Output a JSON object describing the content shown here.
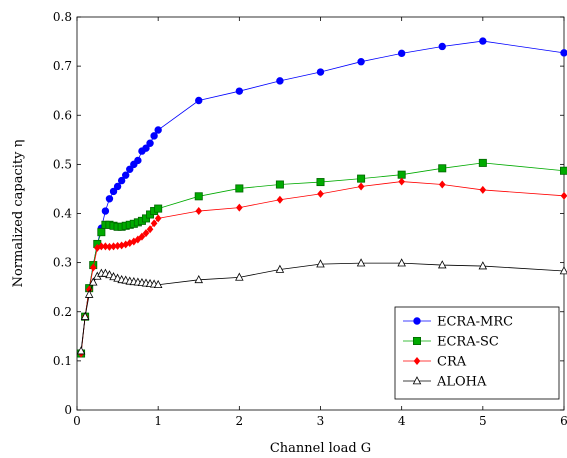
{
  "chart_data": {
    "type": "line",
    "xlabel": "Channel load G",
    "ylabel": "Normalized capacity η",
    "xlim": [
      0,
      6
    ],
    "ylim": [
      0,
      0.8
    ],
    "xticks": [
      "0",
      "1",
      "2",
      "3",
      "4",
      "5",
      "6"
    ],
    "yticks": [
      "0",
      "0.1",
      "0.2",
      "0.3",
      "0.4",
      "0.5",
      "0.6",
      "0.7",
      "0.8"
    ],
    "legend_position": "bottom-right",
    "grid": false,
    "series": [
      {
        "name": "ECRA-MRC",
        "color": "#0000ff",
        "marker": "circle",
        "x": [
          0.05,
          0.1,
          0.15,
          0.2,
          0.25,
          0.3,
          0.35,
          0.4,
          0.45,
          0.5,
          0.55,
          0.6,
          0.65,
          0.7,
          0.75,
          0.8,
          0.85,
          0.9,
          0.95,
          1,
          1.5,
          2,
          2.5,
          3,
          3.5,
          4,
          4.5,
          5,
          6
        ],
        "y": [
          0.115,
          0.19,
          0.248,
          0.295,
          0.338,
          0.37,
          0.405,
          0.43,
          0.445,
          0.455,
          0.467,
          0.478,
          0.49,
          0.5,
          0.508,
          0.527,
          0.533,
          0.543,
          0.558,
          0.57,
          0.63,
          0.649,
          0.67,
          0.688,
          0.709,
          0.726,
          0.74,
          0.751,
          0.727
        ]
      },
      {
        "name": "ECRA-SC",
        "color": "#00aa00",
        "marker": "square",
        "x": [
          0.05,
          0.1,
          0.15,
          0.2,
          0.25,
          0.3,
          0.35,
          0.4,
          0.45,
          0.5,
          0.55,
          0.6,
          0.65,
          0.7,
          0.75,
          0.8,
          0.85,
          0.9,
          0.95,
          1,
          1.5,
          2,
          2.5,
          3,
          3.5,
          4,
          4.5,
          5,
          6
        ],
        "y": [
          0.115,
          0.19,
          0.248,
          0.295,
          0.338,
          0.362,
          0.377,
          0.377,
          0.375,
          0.373,
          0.373,
          0.375,
          0.377,
          0.379,
          0.382,
          0.385,
          0.39,
          0.398,
          0.405,
          0.41,
          0.435,
          0.451,
          0.459,
          0.464,
          0.471,
          0.479,
          0.492,
          0.503,
          0.487
        ]
      },
      {
        "name": "CRA",
        "color": "#ff0000",
        "marker": "diamond",
        "x": [
          0.05,
          0.1,
          0.15,
          0.2,
          0.25,
          0.3,
          0.35,
          0.4,
          0.45,
          0.5,
          0.55,
          0.6,
          0.65,
          0.7,
          0.75,
          0.8,
          0.85,
          0.9,
          0.95,
          1,
          1.5,
          2,
          2.5,
          3,
          3.5,
          4,
          4.5,
          5,
          6
        ],
        "y": [
          0.115,
          0.19,
          0.245,
          0.29,
          0.33,
          0.333,
          0.333,
          0.332,
          0.333,
          0.334,
          0.335,
          0.337,
          0.34,
          0.343,
          0.347,
          0.353,
          0.36,
          0.368,
          0.38,
          0.39,
          0.405,
          0.412,
          0.428,
          0.44,
          0.455,
          0.465,
          0.459,
          0.448,
          0.436
        ]
      },
      {
        "name": "ALOHA",
        "color": "#000000",
        "marker": "triangle",
        "x": [
          0.05,
          0.1,
          0.15,
          0.2,
          0.25,
          0.3,
          0.35,
          0.4,
          0.45,
          0.5,
          0.55,
          0.6,
          0.65,
          0.7,
          0.75,
          0.8,
          0.85,
          0.9,
          0.95,
          1,
          1.5,
          2,
          2.5,
          3,
          3.5,
          4,
          4.5,
          5,
          6
        ],
        "y": [
          0.12,
          0.19,
          0.235,
          0.26,
          0.272,
          0.278,
          0.278,
          0.275,
          0.271,
          0.268,
          0.265,
          0.264,
          0.262,
          0.261,
          0.26,
          0.259,
          0.258,
          0.257,
          0.256,
          0.255,
          0.265,
          0.27,
          0.286,
          0.297,
          0.299,
          0.299,
          0.295,
          0.293,
          0.283
        ]
      }
    ]
  }
}
